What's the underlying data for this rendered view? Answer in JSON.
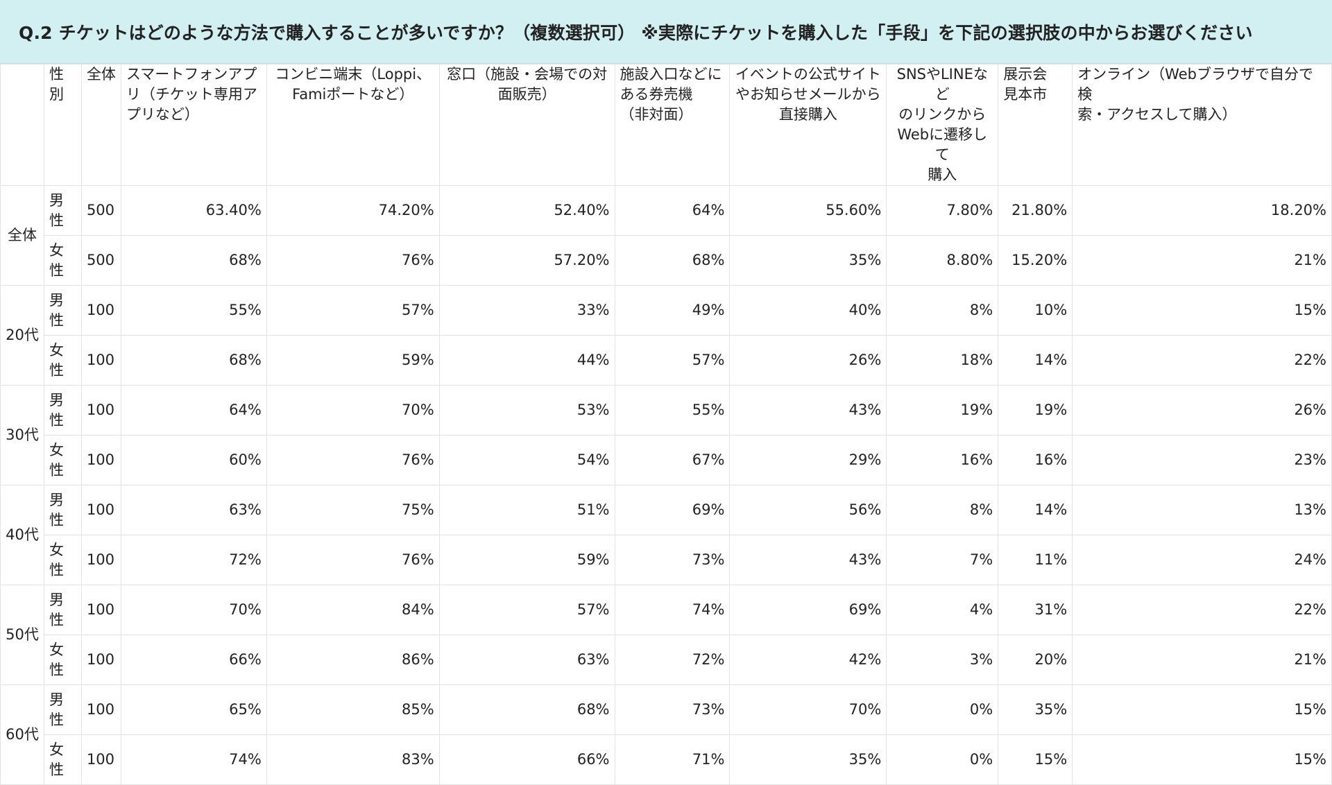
{
  "title": "Q.2 チケットはどのような方法で購入することが多いですか？（複数選択可） ※実際にチケットを購入した「手段」を下記の選択肢の中からお選びください",
  "headers": {
    "age": "",
    "sex": "性別",
    "total": "全体",
    "options": [
      "スマートフォンアプ\nリ（チケット専用ア\nプリなど）",
      "コンビニ端末（Loppi、\nFamiポートなど）",
      "窓口（施設・会場での対\n面販売）",
      "施設入口などに\nある券売機\n（非対面）",
      "イベントの公式サイト\nやお知らせメールから\n直接購入",
      "SNSやLINEなど\nのリンクから\nWebに遷移して\n購入",
      "展示会\n見本市",
      "オンライン（Webブラウザで自分で検\n索・アクセスして購入）"
    ]
  },
  "groups": [
    {
      "label": "全体",
      "rows": [
        {
          "sex": "男性",
          "n": "500",
          "values": [
            "63.40%",
            "74.20%",
            "52.40%",
            "64%",
            "55.60%",
            "7.80%",
            "21.80%",
            "18.20%"
          ]
        },
        {
          "sex": "女性",
          "n": "500",
          "values": [
            "68%",
            "76%",
            "57.20%",
            "68%",
            "35%",
            "8.80%",
            "15.20%",
            "21%"
          ]
        }
      ]
    },
    {
      "label": "20代",
      "rows": [
        {
          "sex": "男性",
          "n": "100",
          "values": [
            "55%",
            "57%",
            "33%",
            "49%",
            "40%",
            "8%",
            "10%",
            "15%"
          ]
        },
        {
          "sex": "女性",
          "n": "100",
          "values": [
            "68%",
            "59%",
            "44%",
            "57%",
            "26%",
            "18%",
            "14%",
            "22%"
          ]
        }
      ]
    },
    {
      "label": "30代",
      "rows": [
        {
          "sex": "男性",
          "n": "100",
          "values": [
            "64%",
            "70%",
            "53%",
            "55%",
            "43%",
            "19%",
            "19%",
            "26%"
          ]
        },
        {
          "sex": "女性",
          "n": "100",
          "values": [
            "60%",
            "76%",
            "54%",
            "67%",
            "29%",
            "16%",
            "16%",
            "23%"
          ]
        }
      ]
    },
    {
      "label": "40代",
      "rows": [
        {
          "sex": "男性",
          "n": "100",
          "values": [
            "63%",
            "75%",
            "51%",
            "69%",
            "56%",
            "8%",
            "14%",
            "13%"
          ]
        },
        {
          "sex": "女性",
          "n": "100",
          "values": [
            "72%",
            "76%",
            "59%",
            "73%",
            "43%",
            "7%",
            "11%",
            "24%"
          ]
        }
      ]
    },
    {
      "label": "50代",
      "rows": [
        {
          "sex": "男性",
          "n": "100",
          "values": [
            "70%",
            "84%",
            "57%",
            "74%",
            "69%",
            "4%",
            "31%",
            "22%"
          ]
        },
        {
          "sex": "女性",
          "n": "100",
          "values": [
            "66%",
            "86%",
            "63%",
            "72%",
            "42%",
            "3%",
            "20%",
            "21%"
          ]
        }
      ]
    },
    {
      "label": "60代",
      "rows": [
        {
          "sex": "男性",
          "n": "100",
          "values": [
            "65%",
            "85%",
            "68%",
            "73%",
            "70%",
            "0%",
            "35%",
            "15%"
          ]
        },
        {
          "sex": "女性",
          "n": "100",
          "values": [
            "74%",
            "83%",
            "66%",
            "71%",
            "35%",
            "0%",
            "15%",
            "15%"
          ]
        }
      ]
    }
  ]
}
